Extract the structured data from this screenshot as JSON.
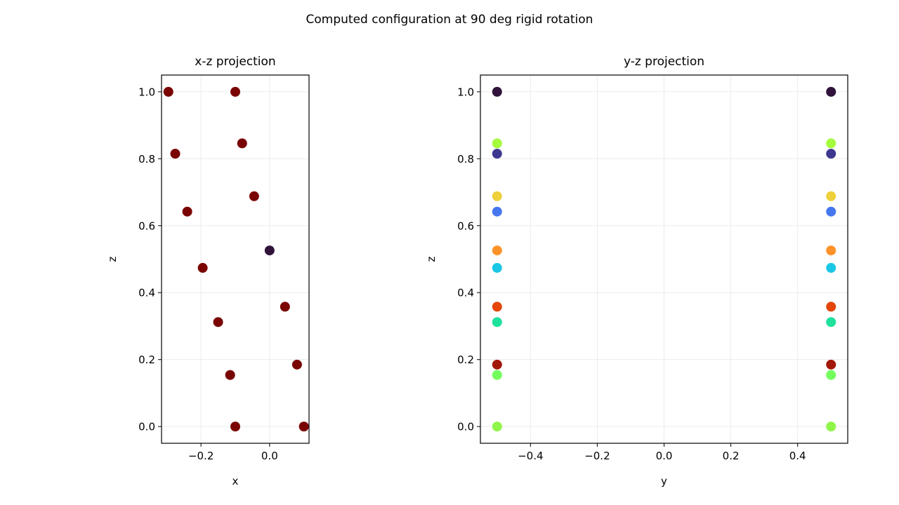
{
  "figure": {
    "title": "Computed configuration at 90 deg rigid rotation"
  },
  "chart_data": [
    {
      "type": "scatter",
      "title": "x-z projection",
      "xlabel": "x",
      "ylabel": "z",
      "xlim": [
        -0.315,
        0.115
      ],
      "ylim": [
        -0.05,
        1.05
      ],
      "xticks": [
        -0.2,
        0.0
      ],
      "xticklabels": [
        "−0.2",
        "0.0"
      ],
      "yticks": [
        0.0,
        0.2,
        0.4,
        0.6,
        0.8,
        1.0
      ],
      "yticklabels": [
        "0.0",
        "0.2",
        "0.4",
        "0.6",
        "0.8",
        "1.0"
      ],
      "grid": true,
      "points": [
        {
          "x": -0.295,
          "y": 1.0,
          "color": "#7a0403"
        },
        {
          "x": -0.1,
          "y": 1.0,
          "color": "#7a0403"
        },
        {
          "x": -0.08,
          "y": 0.846,
          "color": "#7a0403"
        },
        {
          "x": -0.275,
          "y": 0.815,
          "color": "#7a0403"
        },
        {
          "x": -0.045,
          "y": 0.688,
          "color": "#7a0403"
        },
        {
          "x": -0.24,
          "y": 0.642,
          "color": "#7a0403"
        },
        {
          "x": 0.0,
          "y": 0.526,
          "color": "#30123b"
        },
        {
          "x": -0.195,
          "y": 0.474,
          "color": "#7a0403"
        },
        {
          "x": 0.045,
          "y": 0.358,
          "color": "#7a0403"
        },
        {
          "x": -0.15,
          "y": 0.312,
          "color": "#7a0403"
        },
        {
          "x": 0.08,
          "y": 0.185,
          "color": "#7a0403"
        },
        {
          "x": -0.115,
          "y": 0.154,
          "color": "#7a0403"
        },
        {
          "x": -0.1,
          "y": 0.0,
          "color": "#7a0403"
        },
        {
          "x": 0.1,
          "y": 0.0,
          "color": "#7a0403"
        }
      ]
    },
    {
      "type": "scatter",
      "title": "y-z projection",
      "xlabel": "y",
      "ylabel": "z",
      "xlim": [
        -0.55,
        0.55
      ],
      "ylim": [
        -0.05,
        1.05
      ],
      "xticks": [
        -0.4,
        -0.2,
        0.0,
        0.2,
        0.4
      ],
      "xticklabels": [
        "−0.4",
        "−0.2",
        "0.0",
        "0.2",
        "0.4"
      ],
      "yticks": [
        0.0,
        0.2,
        0.4,
        0.6,
        0.8,
        1.0
      ],
      "yticklabels": [
        "0.0",
        "0.2",
        "0.4",
        "0.6",
        "0.8",
        "1.0"
      ],
      "grid": true,
      "points": [
        {
          "x": -0.5,
          "y": 1.0,
          "color": "#30123b"
        },
        {
          "x": 0.5,
          "y": 1.0,
          "color": "#30123b"
        },
        {
          "x": -0.5,
          "y": 0.846,
          "color": "#a4fc3c"
        },
        {
          "x": 0.5,
          "y": 0.846,
          "color": "#a4fc3c"
        },
        {
          "x": -0.5,
          "y": 0.815,
          "color": "#3e378f"
        },
        {
          "x": 0.5,
          "y": 0.815,
          "color": "#3e378f"
        },
        {
          "x": -0.5,
          "y": 0.688,
          "color": "#edd03a"
        },
        {
          "x": 0.5,
          "y": 0.688,
          "color": "#edd03a"
        },
        {
          "x": -0.5,
          "y": 0.642,
          "color": "#4777ef"
        },
        {
          "x": 0.5,
          "y": 0.642,
          "color": "#4777ef"
        },
        {
          "x": -0.5,
          "y": 0.526,
          "color": "#fe922a"
        },
        {
          "x": 0.5,
          "y": 0.526,
          "color": "#fe922a"
        },
        {
          "x": -0.5,
          "y": 0.474,
          "color": "#1bc7e5"
        },
        {
          "x": 0.5,
          "y": 0.474,
          "color": "#1bc7e5"
        },
        {
          "x": -0.5,
          "y": 0.358,
          "color": "#e4460a"
        },
        {
          "x": 0.5,
          "y": 0.358,
          "color": "#e4460a"
        },
        {
          "x": -0.5,
          "y": 0.312,
          "color": "#1ee19b"
        },
        {
          "x": 0.5,
          "y": 0.312,
          "color": "#1ee19b"
        },
        {
          "x": -0.5,
          "y": 0.185,
          "color": "#a2180a"
        },
        {
          "x": 0.5,
          "y": 0.185,
          "color": "#a2180a"
        },
        {
          "x": -0.5,
          "y": 0.154,
          "color": "#74fe5d"
        },
        {
          "x": 0.5,
          "y": 0.154,
          "color": "#74fe5d"
        },
        {
          "x": -0.5,
          "y": 0.0,
          "color": "#8ff54a"
        },
        {
          "x": 0.5,
          "y": 0.0,
          "color": "#8ff54a"
        }
      ]
    }
  ]
}
